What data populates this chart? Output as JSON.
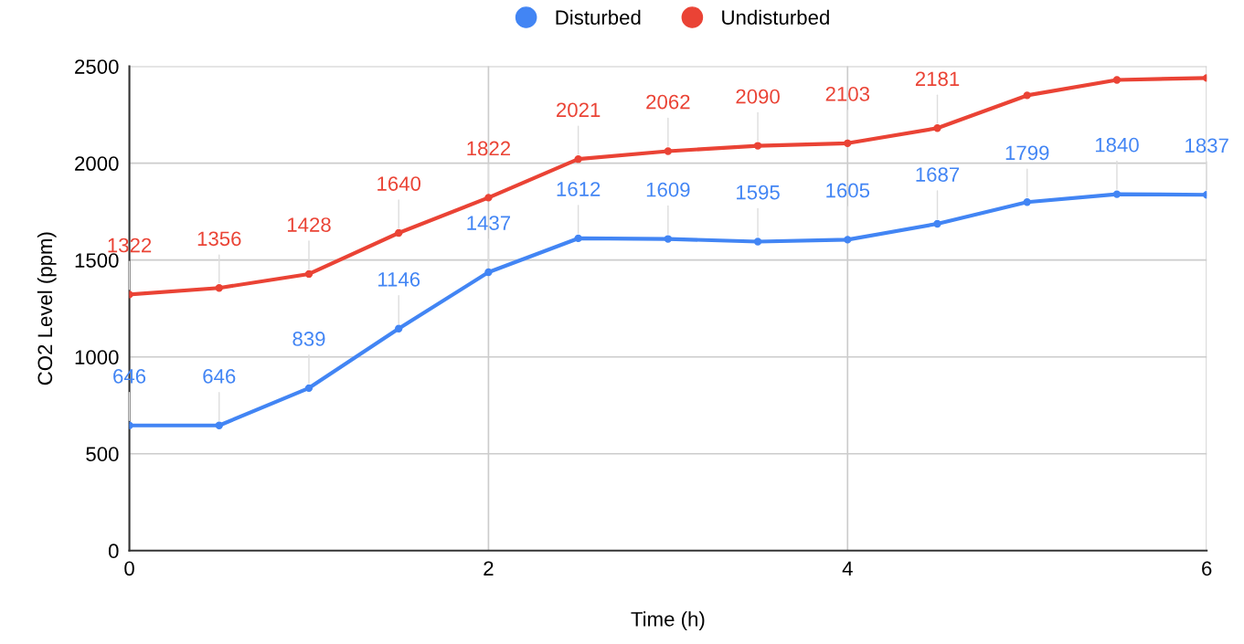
{
  "chart_data": {
    "type": "line",
    "xlabel": "Time (h)",
    "ylabel": "CO2 Level (ppm)",
    "x": [
      0,
      0.5,
      1,
      1.5,
      2,
      2.5,
      3,
      3.5,
      4,
      4.5,
      5,
      5.5,
      6
    ],
    "series": [
      {
        "name": "Disturbed",
        "color": "#4285f4",
        "values": [
          646,
          646,
          839,
          1146,
          1437,
          1612,
          1609,
          1595,
          1605,
          1687,
          1799,
          1840,
          1837
        ],
        "value_labels": [
          "646",
          "646",
          "839",
          "1146",
          "1437",
          "1612",
          "1609",
          "1595",
          "1605",
          "1687",
          "1799",
          "1840",
          "1837"
        ]
      },
      {
        "name": "Undisturbed",
        "color": "#ea4335",
        "values": [
          1322,
          1356,
          1428,
          1640,
          1822,
          2021,
          2062,
          2090,
          2103,
          2181,
          2350,
          2430,
          2440
        ],
        "value_labels": [
          "1322",
          "1356",
          "1428",
          "1640",
          "1822",
          "2021",
          "2062",
          "2090",
          "2103",
          "2181",
          null,
          null,
          null
        ]
      }
    ],
    "xlim": [
      0,
      6
    ],
    "xticks": [
      0,
      2,
      4,
      6
    ],
    "ylim": [
      0,
      2500
    ],
    "yticks": [
      0,
      500,
      1000,
      1500,
      2000,
      2500
    ],
    "grid": true,
    "legend": "top",
    "marker": "circle",
    "line_style": "solid"
  }
}
